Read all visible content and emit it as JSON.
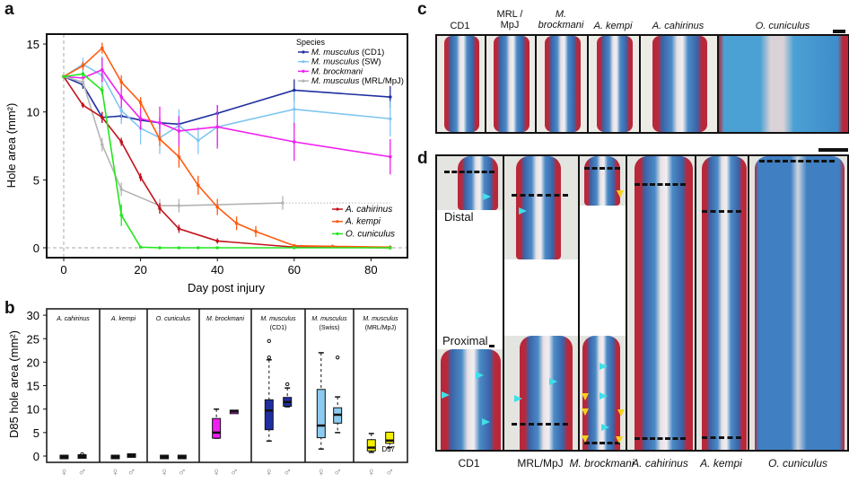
{
  "panels": {
    "a": "a",
    "b": "b",
    "c": "c",
    "d": "d"
  },
  "chart_data": [
    {
      "type": "line",
      "panel": "a",
      "xlabel": "Day post injury",
      "ylabel": "Hole area (mm²)",
      "xlim": [
        -3,
        88
      ],
      "ylim": [
        -0.7,
        15.7
      ],
      "xticks": [
        0,
        20,
        40,
        60,
        80
      ],
      "yticks": [
        0,
        5,
        10,
        15
      ],
      "grid": false,
      "legend_title": "Species",
      "legend": [
        "top-right",
        "bottom-right"
      ],
      "series": [
        {
          "name": "M. musculus",
          "suffix": " (CD1)",
          "color": "#1f2fa0",
          "legend": 1,
          "x": [
            0,
            5,
            10,
            15,
            20,
            25,
            30,
            40,
            60,
            85
          ],
          "y": [
            12.6,
            12.0,
            9.6,
            9.7,
            9.4,
            9.2,
            9.1,
            9.9,
            11.6,
            11.1
          ],
          "err": [
            0,
            0.3,
            0.4,
            0.3,
            0.3,
            0.4,
            0.4,
            0.6,
            0.8,
            0.8
          ]
        },
        {
          "name": "M. musculus",
          "suffix": " (SW)",
          "color": "#80c6f0",
          "legend": 1,
          "x": [
            0,
            5,
            10,
            15,
            20,
            25,
            30,
            35,
            40,
            60,
            85
          ],
          "y": [
            12.6,
            13.5,
            12.7,
            10.1,
            8.8,
            8.1,
            9.0,
            7.9,
            8.9,
            10.2,
            9.5
          ],
          "err": [
            0,
            0.5,
            1.4,
            1.0,
            1.2,
            1.2,
            1.2,
            1.0,
            1.4,
            1.3,
            1.3
          ]
        },
        {
          "name": "M. brockmani",
          "suffix": "",
          "color": "#f01ff0",
          "legend": 1,
          "x": [
            0,
            5,
            10,
            15,
            20,
            25,
            30,
            40,
            60,
            85
          ],
          "y": [
            12.6,
            12.5,
            13.1,
            11.1,
            9.5,
            9.2,
            8.6,
            8.9,
            7.8,
            6.7
          ],
          "err": [
            0,
            0.3,
            0.9,
            0.8,
            0.8,
            1.2,
            1.1,
            1.6,
            1.4,
            1.3
          ]
        },
        {
          "name": "M. musculus",
          "suffix": " (MRL/MpJ)",
          "color": "#b4b4b4",
          "legend": 1,
          "x": [
            0,
            5,
            10,
            15,
            25,
            30,
            57
          ],
          "y": [
            12.6,
            12.2,
            7.6,
            4.3,
            3.1,
            3.1,
            3.3
          ],
          "err": [
            0,
            0.3,
            0.5,
            0.5,
            0.5,
            0.5,
            0.5
          ],
          "dotted_to": 85
        },
        {
          "name": "A. cahirinus",
          "suffix": "",
          "color": "#c4121c",
          "legend": 2,
          "x": [
            0,
            5,
            10,
            15,
            20,
            25,
            30,
            40,
            60,
            85
          ],
          "y": [
            12.6,
            10.5,
            9.6,
            7.8,
            5.2,
            2.9,
            1.4,
            0.5,
            0.05,
            0
          ],
          "err": [
            0,
            0.2,
            0.4,
            0.3,
            0.3,
            0.4,
            0.3,
            0.2,
            0.05,
            0.02
          ]
        },
        {
          "name": "A. kempi",
          "suffix": "",
          "color": "#ff5a10",
          "legend": 2,
          "x": [
            0,
            5,
            10,
            15,
            20,
            25,
            30,
            35,
            40,
            45,
            50,
            60,
            70,
            85
          ],
          "y": [
            12.6,
            13.4,
            14.7,
            12.2,
            10.7,
            8.0,
            6.7,
            4.6,
            3.0,
            1.8,
            1.2,
            0.15,
            0.1,
            0.05
          ],
          "err": [
            0,
            0.3,
            0.4,
            0.5,
            0.4,
            0.5,
            0.8,
            0.7,
            0.6,
            0.5,
            0.4,
            0.1,
            0.05,
            0.02
          ]
        },
        {
          "name": "O. cuniculus",
          "suffix": "",
          "color": "#22e61e",
          "legend": 2,
          "x": [
            0,
            5,
            10,
            15,
            20,
            25,
            30,
            35,
            40,
            60,
            85
          ],
          "y": [
            12.6,
            12.8,
            11.6,
            2.4,
            0.05,
            0,
            0,
            0,
            0,
            0,
            0
          ],
          "err": [
            0,
            0.2,
            0.3,
            0.8,
            0.05,
            0,
            0,
            0,
            0,
            0,
            0
          ]
        }
      ]
    },
    {
      "type": "box",
      "panel": "b",
      "ylabel": "D85 hole area (mm²)",
      "ylim": [
        0,
        30
      ],
      "yticks": [
        0,
        5,
        10,
        15,
        20,
        25,
        30
      ],
      "categories": [
        "♀",
        "♂"
      ],
      "annotation": "D57",
      "facets": [
        {
          "title": "A. cahirinus",
          "sub": "",
          "color": "#111111",
          "boxes": [
            {
              "s": [
                0,
                0,
                0,
                0,
                0
              ],
              "out": []
            },
            {
              "s": [
                0,
                0,
                0,
                0.1,
                0.1
              ],
              "out": [
                0.4
              ]
            }
          ]
        },
        {
          "title": "A. kempi",
          "sub": "",
          "color": "#111111",
          "boxes": [
            {
              "s": [
                0,
                0,
                0,
                0,
                0
              ],
              "out": []
            },
            {
              "s": [
                0,
                0.1,
                0.2,
                0.3,
                0.4
              ],
              "out": []
            }
          ]
        },
        {
          "title": "O. cuniculus",
          "sub": "",
          "color": "#111111",
          "boxes": [
            {
              "s": [
                0,
                0,
                0,
                0,
                0
              ],
              "out": []
            },
            {
              "s": [
                0,
                0,
                0,
                0,
                0
              ],
              "out": []
            }
          ]
        },
        {
          "title": "M. brockmani",
          "sub": "",
          "color": "#f01ff0",
          "boxes": [
            {
              "s": [
                3.8,
                4.0,
                5.0,
                7.8,
                10.0
              ],
              "out": []
            },
            {
              "s": [
                9.3,
                9.4,
                9.5,
                9.6,
                9.7
              ],
              "out": []
            }
          ]
        },
        {
          "title": "M. musculus",
          "sub": "(CD1)",
          "color": "#1f2fa0",
          "boxes": [
            {
              "s": [
                3.2,
                5.8,
                9.7,
                11.8,
                20.5
              ],
              "out": [
                21,
                24.5
              ]
            },
            {
              "s": [
                10.5,
                10.8,
                11.5,
                12.3,
                14.5
              ],
              "out": [
                15.3
              ]
            }
          ]
        },
        {
          "title": "M. musculus",
          "sub": "(Swiss)",
          "color": "#8ccaf0",
          "boxes": [
            {
              "s": [
                1.5,
                4.1,
                6.5,
                14.0,
                22.0
              ],
              "out": []
            },
            {
              "s": [
                5.0,
                7.2,
                8.8,
                10.1,
                12.6
              ],
              "out": [
                21
              ]
            }
          ]
        },
        {
          "title": "M. musculus",
          "sub": "(MRL/MpJ)",
          "color": "#f5f000",
          "boxes": [
            {
              "s": [
                0.8,
                1.3,
                1.8,
                3.3,
                4.8
              ],
              "out": []
            },
            {
              "s": [
                1.8,
                2.9,
                3.3,
                4.9,
                4.9
              ],
              "out": []
            }
          ]
        }
      ]
    }
  ],
  "panel_c": {
    "headers": [
      "CD1",
      "MRL /\nMpJ",
      "M.\nbrockmani",
      "A. kempi",
      "A. cahirinus",
      "O. cuniculus"
    ],
    "italic": [
      false,
      false,
      true,
      true,
      true,
      true
    ]
  },
  "panel_d": {
    "labels": [
      "CD1",
      "MRL/MpJ",
      "M. brockmani",
      "A. cahirinus",
      "A. kempi",
      "O. cuniculus"
    ],
    "italic": [
      false,
      false,
      true,
      true,
      true,
      true
    ],
    "distal": "Distal",
    "proximal": "Proximal"
  },
  "arrow_colors": {
    "cyan": "#3fe0e8",
    "yellow": "#f5d21a"
  }
}
